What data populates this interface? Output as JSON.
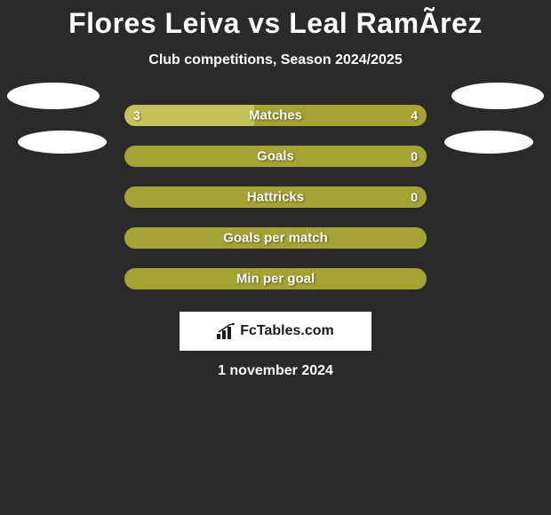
{
  "title": "Flores Leiva vs Leal RamÃrez",
  "subtitle": "Club competitions, Season 2024/2025",
  "date": "1 november 2024",
  "logo_text": "FcTables.com",
  "colors": {
    "bg": "#2a2a2a",
    "bar_primary": "#a5a334",
    "bar_secondary": "#c4c25a",
    "text": "#ffffff",
    "logo_bg": "#ffffff",
    "logo_text": "#1a1a1a"
  },
  "photos": {
    "left": {
      "bg": "#ffffff"
    },
    "right": {
      "bg": "#ffffff"
    }
  },
  "rows": [
    {
      "label": "Matches",
      "left_val": "3",
      "right_val": "4",
      "left_pct": 42.857,
      "left_color": "#c4c25a",
      "right_color": "#a5a334",
      "show_left": true,
      "show_right": true
    },
    {
      "label": "Goals",
      "left_val": "",
      "right_val": "0",
      "left_pct": 0,
      "left_color": "#c4c25a",
      "right_color": "#a5a334",
      "show_left": false,
      "show_right": true
    },
    {
      "label": "Hattricks",
      "left_val": "",
      "right_val": "0",
      "left_pct": 0,
      "left_color": "#c4c25a",
      "right_color": "#a5a334",
      "show_left": false,
      "show_right": true
    },
    {
      "label": "Goals per match",
      "left_val": "",
      "right_val": "",
      "left_pct": 0,
      "left_color": "#c4c25a",
      "right_color": "#a5a334",
      "show_left": false,
      "show_right": false
    },
    {
      "label": "Min per goal",
      "left_val": "",
      "right_val": "",
      "left_pct": 0,
      "left_color": "#c4c25a",
      "right_color": "#a5a334",
      "show_left": false,
      "show_right": false
    }
  ]
}
